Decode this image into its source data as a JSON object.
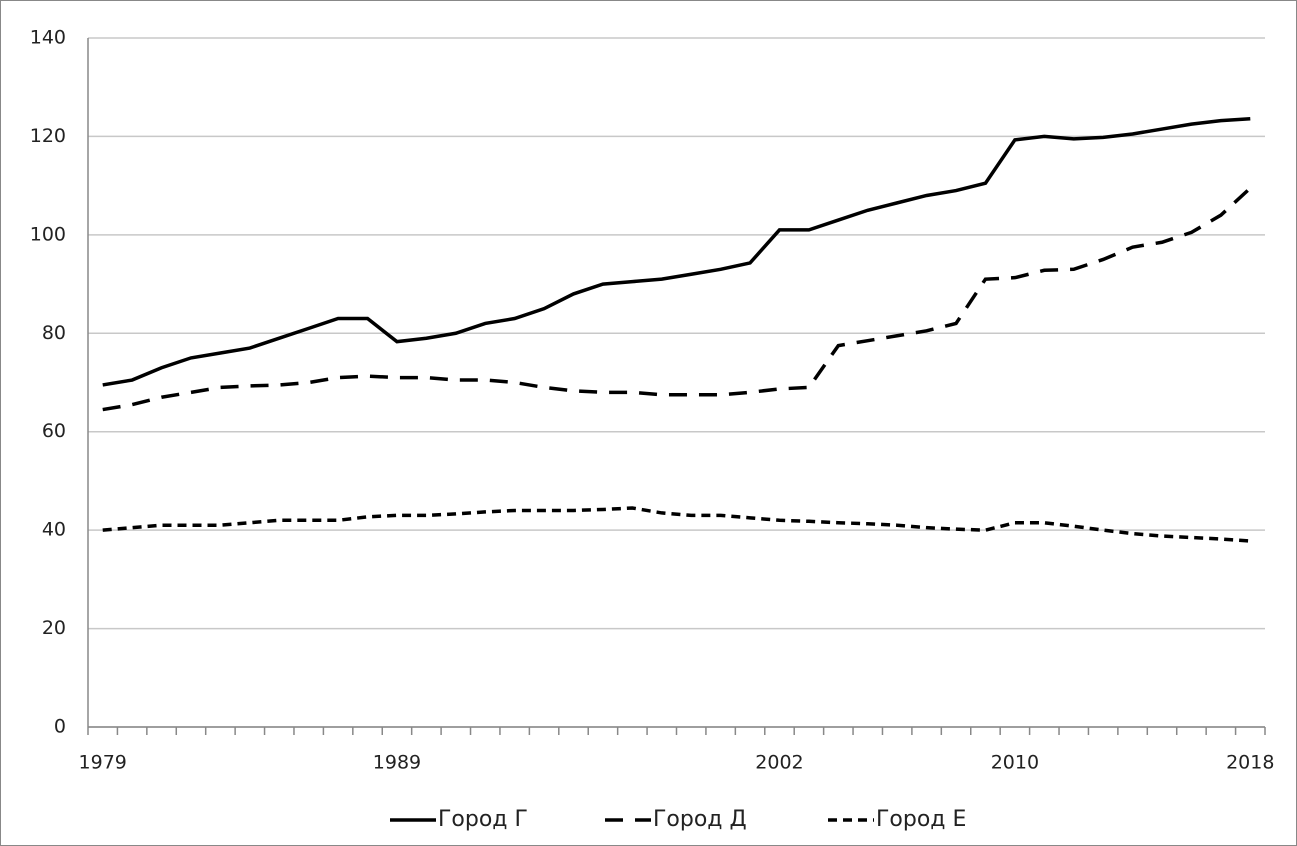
{
  "chart_data": {
    "type": "line",
    "categories": [
      "1979",
      null,
      null,
      null,
      null,
      null,
      null,
      null,
      null,
      null,
      "1989",
      null,
      null,
      null,
      null,
      null,
      null,
      null,
      null,
      null,
      null,
      null,
      null,
      "2002",
      null,
      null,
      null,
      null,
      null,
      null,
      null,
      "2010",
      null,
      null,
      null,
      null,
      null,
      null,
      null,
      "2018"
    ],
    "series": [
      {
        "name": "Город Г",
        "color": "#000000",
        "line_style": "solid",
        "values": [
          69.5,
          70.5,
          73,
          75,
          76,
          77,
          79,
          81,
          83,
          83,
          78.3,
          79,
          80,
          82,
          83,
          85,
          88,
          90,
          90.5,
          91,
          92,
          93,
          94.3,
          101,
          101,
          103,
          105,
          106.5,
          108,
          109,
          110.5,
          119.3,
          120,
          119.5,
          119.8,
          120.5,
          121.5,
          122.5,
          123.2,
          123.6
        ]
      },
      {
        "name": "Город Д",
        "color": "#000000",
        "line_style": "long-dash",
        "values": [
          64.5,
          65.5,
          67,
          68,
          69,
          69.3,
          69.5,
          70,
          71,
          71.3,
          71,
          71,
          70.5,
          70.5,
          70,
          69,
          68.3,
          68,
          68,
          67.5,
          67.5,
          67.5,
          68,
          68.7,
          69,
          77.5,
          78.5,
          79.5,
          80.5,
          82,
          91,
          91.3,
          92.8,
          93,
          95,
          97.5,
          98.5,
          100.5,
          104,
          109.5
        ]
      },
      {
        "name": "Город Е",
        "color": "#000000",
        "line_style": "short-dash",
        "values": [
          40,
          40.5,
          41,
          41,
          41,
          41.5,
          42,
          42,
          42,
          42.7,
          43,
          43,
          43.3,
          43.7,
          44,
          44,
          44,
          44.2,
          44.5,
          43.5,
          43,
          43,
          42.5,
          42,
          41.8,
          41.5,
          41.3,
          41,
          40.5,
          40.2,
          40,
          41.5,
          41.5,
          40.8,
          40,
          39.3,
          38.8,
          38.5,
          38.2,
          37.8
        ]
      }
    ],
    "ylim": [
      0,
      140
    ],
    "yticks": [
      0,
      20,
      40,
      60,
      80,
      100,
      120,
      140
    ],
    "grid": true,
    "legend": "bottom"
  }
}
